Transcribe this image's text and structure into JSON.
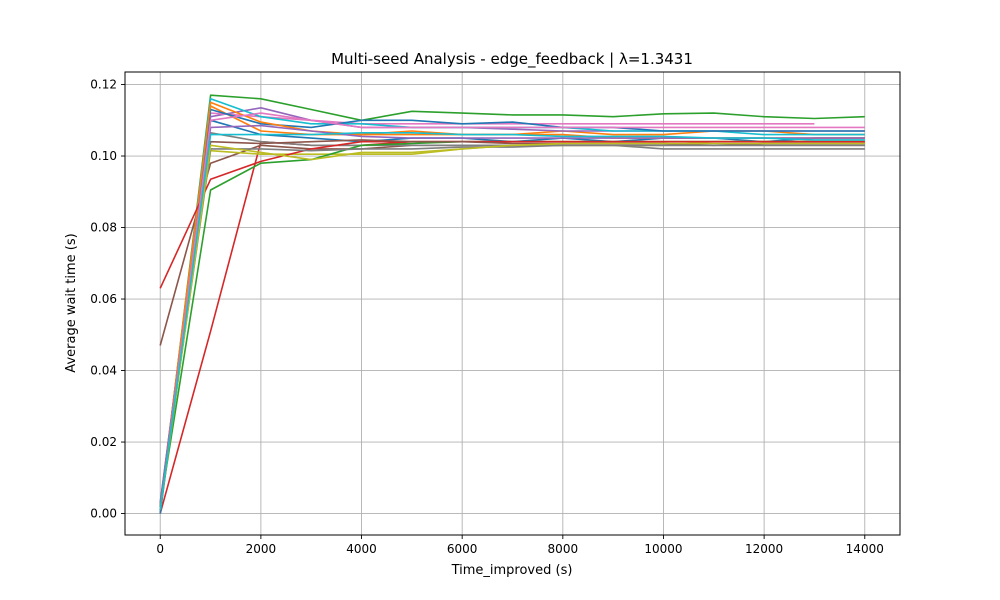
{
  "chart_data": {
    "type": "line",
    "title": "Multi-seed Analysis - edge_feedback | λ=1.3431",
    "xlabel": "Time_improved (s)",
    "ylabel": "Average wait time (s)",
    "xlim": [
      -700,
      14700
    ],
    "ylim": [
      -0.006,
      0.1235
    ],
    "x_ticks": [
      0,
      2000,
      4000,
      6000,
      8000,
      10000,
      12000,
      14000
    ],
    "x_tick_labels": [
      "0",
      "2000",
      "4000",
      "6000",
      "8000",
      "10000",
      "12000",
      "14000"
    ],
    "y_ticks": [
      0.0,
      0.02,
      0.04,
      0.06,
      0.08,
      0.1,
      0.12
    ],
    "y_tick_labels": [
      "0.00",
      "0.02",
      "0.04",
      "0.06",
      "0.08",
      "0.10",
      "0.12"
    ],
    "grid": true,
    "legend": "none",
    "colors": [
      "#1f77b4",
      "#ff7f0e",
      "#2ca02c",
      "#d62728",
      "#9467bd",
      "#8c564b",
      "#e377c2",
      "#7f7f7f",
      "#bcbd22",
      "#17becf"
    ],
    "series": [
      {
        "x": [
          0,
          1000,
          2000,
          3000,
          4000,
          5000,
          6000,
          7000,
          8000,
          9000,
          10000,
          11000,
          12000,
          13000,
          14000
        ],
        "values": [
          0.001,
          0.11,
          0.106,
          0.105,
          0.104,
          0.105,
          0.105,
          0.104,
          0.105,
          0.104,
          0.105,
          0.105,
          0.104,
          0.105,
          0.105
        ]
      },
      {
        "x": [
          0,
          1000,
          2000,
          3000,
          4000,
          5000,
          6000,
          7000,
          8000,
          9000,
          10000,
          11000,
          12000,
          13000,
          14000
        ],
        "values": [
          0.002,
          0.114,
          0.107,
          0.106,
          0.106,
          0.107,
          0.106,
          0.106,
          0.107,
          0.106,
          0.106,
          0.107,
          0.107,
          0.106,
          0.106
        ]
      },
      {
        "x": [
          0,
          1000,
          2000,
          3000,
          4000,
          5000,
          6000,
          7000,
          8000,
          9000,
          10000,
          11000,
          12000,
          13000,
          14000
        ],
        "values": [
          0.001,
          0.117,
          0.116,
          0.113,
          0.11,
          0.1125,
          0.112,
          0.1115,
          0.1115,
          0.111,
          0.1118,
          0.112,
          0.111,
          0.1105,
          0.111
        ]
      },
      {
        "x": [
          0,
          1000,
          2000,
          3000,
          4000,
          5000,
          6000,
          7000,
          8000,
          9000,
          10000,
          11000,
          12000,
          13000,
          14000
        ],
        "values": [
          0.0,
          0.051,
          0.104,
          0.103,
          0.103,
          0.104,
          0.104,
          0.104,
          0.104,
          0.104,
          0.104,
          0.104,
          0.104,
          0.104,
          0.104
        ]
      },
      {
        "x": [
          0,
          1000,
          2000,
          3000,
          4000,
          5000,
          6000,
          7000,
          8000,
          9000,
          10000,
          11000,
          12000,
          13000,
          14000
        ],
        "values": [
          0.003,
          0.111,
          0.1135,
          0.11,
          0.108,
          0.108,
          0.108,
          0.1075,
          0.107,
          0.107,
          0.107,
          0.107,
          0.107,
          0.107,
          0.107
        ]
      },
      {
        "x": [
          0,
          1000,
          2000,
          3000,
          4000,
          5000,
          6000,
          7000,
          8000,
          9000,
          10000,
          11000,
          12000,
          13000,
          14000
        ],
        "values": [
          0.047,
          0.098,
          0.103,
          0.102,
          0.102,
          0.103,
          0.103,
          0.103,
          0.103,
          0.103,
          0.103,
          0.103,
          0.103,
          0.103,
          0.103
        ]
      },
      {
        "x": [
          0,
          1000,
          2000,
          3000,
          4000,
          5000,
          6000,
          7000,
          8000,
          9000,
          10000,
          11000,
          12000,
          13000
        ],
        "values": [
          0.002,
          0.112,
          0.111,
          0.11,
          0.109,
          0.109,
          0.109,
          0.109,
          0.109,
          0.109,
          0.109,
          0.109,
          0.109,
          0.109
        ]
      },
      {
        "x": [
          0,
          1000,
          2000,
          3000,
          4000,
          5000,
          6000,
          7000,
          8000,
          9000,
          10000,
          11000,
          12000,
          13000,
          14000
        ],
        "values": [
          0.0,
          0.1065,
          0.104,
          0.103,
          0.103,
          0.103,
          0.103,
          0.103,
          0.103,
          0.103,
          0.102,
          0.102,
          0.102,
          0.102,
          0.102
        ]
      },
      {
        "x": [
          0,
          1000,
          2000,
          3000,
          4000,
          5000,
          6000,
          7000,
          8000,
          9000,
          10000,
          11000,
          12000,
          13000,
          14000
        ],
        "values": [
          0.002,
          0.1015,
          0.1005,
          0.1005,
          0.1005,
          0.1005,
          0.102,
          0.103,
          0.103,
          0.103,
          0.103,
          0.104,
          0.104,
          0.104,
          0.104
        ]
      },
      {
        "x": [
          0,
          1000,
          2000,
          3000,
          4000,
          5000,
          6000,
          7000,
          8000,
          9000,
          10000,
          11000,
          12000,
          13000,
          14000
        ],
        "values": [
          0.001,
          0.116,
          0.111,
          0.109,
          0.109,
          0.108,
          0.108,
          0.108,
          0.108,
          0.107,
          0.107,
          0.107,
          0.106,
          0.106,
          0.106
        ]
      },
      {
        "x": [
          0,
          1000,
          2000,
          3000,
          4000,
          5000,
          6000,
          7000,
          8000,
          9000,
          10000,
          11000,
          12000,
          13000,
          14000
        ],
        "values": [
          0.0,
          0.113,
          0.109,
          0.108,
          0.11,
          0.11,
          0.109,
          0.1095,
          0.108,
          0.108,
          0.107,
          0.107,
          0.107,
          0.107,
          0.107
        ]
      },
      {
        "x": [
          0,
          1000,
          2000,
          3000,
          4000,
          5000,
          6000,
          7000,
          8000,
          9000,
          10000,
          11000,
          12000,
          13000,
          14000
        ],
        "values": [
          0.002,
          0.115,
          0.1095,
          0.107,
          0.106,
          0.106,
          0.106,
          0.106,
          0.106,
          0.105,
          0.105,
          0.105,
          0.105,
          0.105,
          0.105
        ]
      },
      {
        "x": [
          0,
          1000,
          2000,
          3000,
          4000,
          5000,
          6000,
          7000,
          8000,
          9000,
          10000,
          11000,
          12000,
          13000,
          14000
        ],
        "values": [
          0.002,
          0.0905,
          0.098,
          0.099,
          0.103,
          0.1035,
          0.104,
          0.104,
          0.104,
          0.104,
          0.104,
          0.104,
          0.104,
          0.104,
          0.104
        ]
      },
      {
        "x": [
          0,
          1000,
          2000,
          3000,
          4000,
          5000,
          6000,
          7000,
          8000,
          9000,
          10000,
          11000,
          12000,
          13000,
          14000
        ],
        "values": [
          0.063,
          0.0935,
          0.0985,
          0.102,
          0.104,
          0.104,
          0.104,
          0.104,
          0.104,
          0.104,
          0.104,
          0.104,
          0.104,
          0.104,
          0.104
        ]
      },
      {
        "x": [
          0,
          1000,
          2000,
          3000,
          4000,
          5000,
          6000,
          7000,
          8000,
          9000,
          10000,
          11000,
          12000,
          13000,
          14000
        ],
        "values": [
          0.003,
          0.108,
          0.1085,
          0.107,
          0.1055,
          0.105,
          0.105,
          0.105,
          0.105,
          0.105,
          0.105,
          0.105,
          0.105,
          0.105,
          0.105
        ]
      },
      {
        "x": [
          0,
          1000,
          2000,
          3000,
          4000,
          5000,
          6000,
          7000,
          8000,
          9000,
          10000,
          11000,
          12000,
          13000,
          14000
        ],
        "values": [
          0.002,
          0.104,
          0.1035,
          0.104,
          0.1045,
          0.104,
          0.104,
          0.1035,
          0.1035,
          0.1035,
          0.1035,
          0.103,
          0.1035,
          0.1035,
          0.1035
        ]
      },
      {
        "x": [
          0,
          1000,
          2000,
          3000,
          4000,
          5000,
          6000,
          7000,
          8000,
          9000,
          10000,
          11000,
          12000,
          13000,
          14000
        ],
        "values": [
          0.001,
          0.11,
          0.112,
          0.11,
          0.108,
          0.108,
          0.108,
          0.108,
          0.108,
          0.108,
          0.108,
          0.108,
          0.108,
          0.108,
          0.108
        ]
      },
      {
        "x": [
          0,
          1000,
          2000,
          3000,
          4000,
          5000,
          6000,
          7000,
          8000,
          9000,
          10000,
          11000,
          12000,
          13000,
          14000
        ],
        "values": [
          0.002,
          0.102,
          0.102,
          0.1015,
          0.102,
          0.102,
          0.1025,
          0.1025,
          0.103,
          0.103,
          0.103,
          0.103,
          0.103,
          0.103,
          0.103
        ]
      },
      {
        "x": [
          0,
          1000,
          2000,
          3000,
          4000,
          5000,
          6000,
          7000,
          8000,
          9000,
          10000,
          11000,
          12000,
          13000,
          14000
        ],
        "values": [
          0.001,
          0.103,
          0.101,
          0.099,
          0.101,
          0.101,
          0.102,
          0.103,
          0.1035,
          0.1035,
          0.1035,
          0.1035,
          0.1035,
          0.1035,
          0.1035
        ]
      },
      {
        "x": [
          0,
          1000,
          2000,
          3000,
          4000,
          5000,
          6000,
          7000,
          8000,
          9000,
          10000,
          11000,
          12000,
          13000,
          14000
        ],
        "values": [
          0.001,
          0.106,
          0.106,
          0.106,
          0.1065,
          0.1065,
          0.106,
          0.106,
          0.1055,
          0.1055,
          0.1055,
          0.105,
          0.105,
          0.1045,
          0.1045
        ]
      }
    ]
  }
}
